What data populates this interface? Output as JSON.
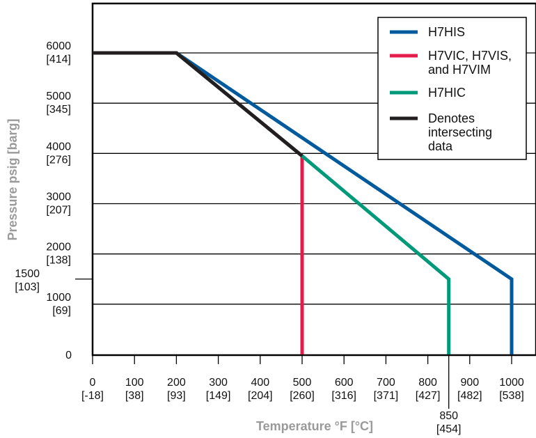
{
  "chart_data": {
    "type": "line",
    "title": "",
    "xlabel": "Temperature °F [°C]",
    "ylabel": "Pressure psig [barg]",
    "xlim": [
      0,
      1060
    ],
    "ylim": [
      0,
      7200
    ],
    "grid": {
      "horizontal": true,
      "vertical": false
    },
    "legend_position": "top-right",
    "x_ticks": [
      {
        "value": 0,
        "label": "0",
        "sub": "[-18]"
      },
      {
        "value": 100,
        "label": "100",
        "sub": "[38]"
      },
      {
        "value": 200,
        "label": "200",
        "sub": "[93]"
      },
      {
        "value": 300,
        "label": "300",
        "sub": "[149]"
      },
      {
        "value": 400,
        "label": "400",
        "sub": "[204]"
      },
      {
        "value": 500,
        "label": "500",
        "sub": "[260]"
      },
      {
        "value": 600,
        "label": "600",
        "sub": "[316]"
      },
      {
        "value": 700,
        "label": "700",
        "sub": "[371]"
      },
      {
        "value": 800,
        "label": "800",
        "sub": "[427]"
      },
      {
        "value": 900,
        "label": "900",
        "sub": "[482]"
      },
      {
        "value": 1000,
        "label": "1000",
        "sub": "[538]"
      }
    ],
    "x_extra_tick": {
      "value": 850,
      "label": "850",
      "sub": "[454]"
    },
    "y_ticks": [
      {
        "value": 0,
        "label": "0",
        "sub": ""
      },
      {
        "value": 1000,
        "label": "1000",
        "sub": "[69]"
      },
      {
        "value": 2000,
        "label": "2000",
        "sub": "[138]"
      },
      {
        "value": 3000,
        "label": "3000",
        "sub": "[207]"
      },
      {
        "value": 4000,
        "label": "4000",
        "sub": "[276]"
      },
      {
        "value": 5000,
        "label": "5000",
        "sub": "[345]"
      },
      {
        "value": 6000,
        "label": "6000",
        "sub": "[414]"
      }
    ],
    "y_extra_tick": {
      "value": 1500,
      "label": "1500",
      "sub": "[103]"
    },
    "series": [
      {
        "name": "H7HIS",
        "color": "#005a9c",
        "points": [
          [
            0,
            6000
          ],
          [
            200,
            6000
          ],
          [
            1000,
            1500
          ],
          [
            1000,
            0
          ]
        ]
      },
      {
        "name": "H7VIC, H7VIS, and H7VIM",
        "color": "#e31b4b",
        "points": [
          [
            0,
            6000
          ],
          [
            200,
            6000
          ],
          [
            500,
            3950
          ],
          [
            500,
            0
          ]
        ]
      },
      {
        "name": "H7HIC",
        "color": "#00997a",
        "points": [
          [
            0,
            6000
          ],
          [
            200,
            6000
          ],
          [
            500,
            3950
          ],
          [
            850,
            1500
          ],
          [
            850,
            0
          ]
        ]
      },
      {
        "name": "Denotes intersecting data",
        "color": "#231f20",
        "points": [
          [
            0,
            6000
          ],
          [
            200,
            6000
          ],
          [
            500,
            3950
          ]
        ]
      }
    ],
    "legend": [
      {
        "label_lines": [
          "H7HIS"
        ],
        "color": "#005a9c"
      },
      {
        "label_lines": [
          "H7VIC, H7VIS,",
          "and H7VIM"
        ],
        "color": "#e31b4b"
      },
      {
        "label_lines": [
          "H7HIC"
        ],
        "color": "#00997a"
      },
      {
        "label_lines": [
          "Denotes",
          "intersecting",
          "data"
        ],
        "color": "#231f20"
      }
    ]
  }
}
